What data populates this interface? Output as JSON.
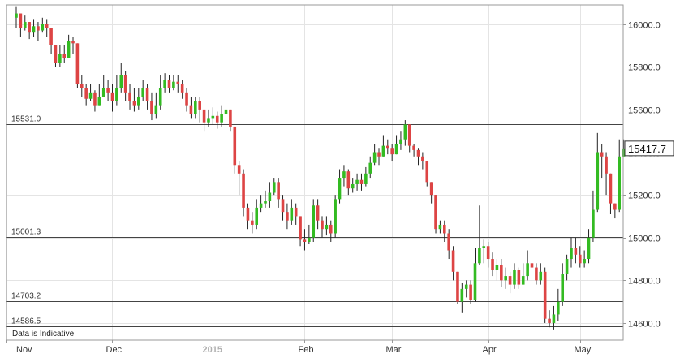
{
  "chart_data": {
    "type": "candlestick",
    "ylim": [
      14520,
      16090
    ],
    "x_count": 140,
    "yticks": [
      "16000.0",
      "15800.0",
      "15600.0",
      "15400.0",
      "15200.0",
      "15000.0",
      "14800.0",
      "14600.0"
    ],
    "ytick_values": [
      16000,
      15800,
      15600,
      15400,
      15200,
      15000,
      14800,
      14600
    ],
    "xticks": [
      {
        "label": "Nov",
        "index": 0,
        "bold": false
      },
      {
        "label": "Dec",
        "index": 22,
        "bold": false
      },
      {
        "label": "2015",
        "index": 44,
        "bold": true
      },
      {
        "label": "Feb",
        "index": 66,
        "bold": false
      },
      {
        "label": "Mar",
        "index": 86,
        "bold": false
      },
      {
        "label": "Apr",
        "index": 108,
        "bold": false
      },
      {
        "label": "May",
        "index": 129,
        "bold": false
      }
    ],
    "levels": [
      {
        "label": "15531.0",
        "value": 15531.0
      },
      {
        "label": "15001.3",
        "value": 15001.3
      },
      {
        "label": "14703.2",
        "value": 14703.2
      },
      {
        "label": "14586.5",
        "value": 14586.5
      }
    ],
    "last_price": {
      "label": "15417.7",
      "value": 15417.7
    },
    "note": "Data is Indicative",
    "grid": true,
    "colors": {
      "up": "#33bb22",
      "down": "#dd4444",
      "wick": "#222222",
      "grid": "#e4e4e4",
      "border": "#999999",
      "level": "#444444"
    },
    "closes": [
      16050,
      15980,
      16010,
      15960,
      15990,
      15970,
      16000,
      15980,
      15900,
      15820,
      15860,
      15840,
      15920,
      15910,
      15720,
      15700,
      15650,
      15680,
      15620,
      15660,
      15700,
      15680,
      15640,
      15700,
      15760,
      15680,
      15640,
      15620,
      15660,
      15700,
      15640,
      15580,
      15620,
      15700,
      15740,
      15700,
      15730,
      15720,
      15680,
      15620,
      15580,
      15640,
      15600,
      15540,
      15560,
      15570,
      15540,
      15580,
      15600,
      15520,
      15340,
      15300,
      15140,
      15080,
      15060,
      15140,
      15160,
      15170,
      15210,
      15260,
      15180,
      15120,
      15080,
      15140,
      15100,
      14990,
      14980,
      15000,
      15150,
      15080,
      15040,
      15060,
      15020,
      15180,
      15280,
      15310,
      15230,
      15250,
      15270,
      15250,
      15300,
      15350,
      15400,
      15380,
      15430,
      15420,
      15390,
      15440,
      15460,
      15530,
      15430,
      15410,
      15380,
      15360,
      15260,
      15200,
      15040,
      15060,
      15020,
      14940,
      14840,
      14700,
      14760,
      14780,
      14710,
      14880,
      14950,
      14960,
      14900,
      14850,
      14870,
      14800,
      14820,
      14780,
      14850,
      14780,
      14820,
      14880,
      14860,
      14800,
      14840,
      14620,
      14600,
      14640,
      14700,
      14830,
      14900,
      14950,
      14920,
      14880,
      14900,
      15000,
      15130,
      15400,
      15380,
      15300,
      15160,
      15130,
      15380,
      15417.7
    ],
    "highs": [
      16080,
      16030,
      16040,
      16010,
      16020,
      16010,
      16030,
      16020,
      15980,
      15880,
      15900,
      15900,
      15950,
      15940,
      15860,
      15760,
      15720,
      15720,
      15690,
      15720,
      15760,
      15740,
      15720,
      15760,
      15820,
      15780,
      15720,
      15700,
      15700,
      15740,
      15720,
      15680,
      15680,
      15760,
      15770,
      15760,
      15760,
      15760,
      15740,
      15700,
      15660,
      15660,
      15660,
      15600,
      15600,
      15610,
      15590,
      15620,
      15630,
      15600,
      15520,
      15360,
      15320,
      15160,
      15120,
      15180,
      15200,
      15220,
      15260,
      15280,
      15280,
      15200,
      15160,
      15180,
      15160,
      15100,
      15040,
      15060,
      15180,
      15180,
      15100,
      15100,
      15080,
      15200,
      15320,
      15340,
      15320,
      15280,
      15300,
      15300,
      15330,
      15380,
      15440,
      15420,
      15480,
      15460,
      15440,
      15480,
      15500,
      15550,
      15500,
      15440,
      15420,
      15400,
      15360,
      15260,
      15200,
      15080,
      15080,
      15040,
      14960,
      14840,
      14790,
      14800,
      14800,
      14950,
      15150,
      14990,
      14980,
      14930,
      14900,
      14900,
      14860,
      14840,
      14880,
      14860,
      14880,
      14940,
      14900,
      14880,
      14880,
      14860,
      14660,
      14680,
      14760,
      14880,
      14920,
      15000,
      15000,
      14960,
      14940,
      15040,
      15220,
      15490,
      15440,
      15400,
      15300,
      15160,
      15460,
      15460
    ],
    "lows": [
      15980,
      15940,
      15970,
      15930,
      15940,
      15920,
      15960,
      15940,
      15860,
      15800,
      15800,
      15820,
      15840,
      15860,
      15700,
      15660,
      15620,
      15640,
      15590,
      15620,
      15660,
      15640,
      15590,
      15620,
      15680,
      15640,
      15600,
      15590,
      15600,
      15640,
      15600,
      15550,
      15560,
      15600,
      15680,
      15680,
      15690,
      15680,
      15650,
      15590,
      15560,
      15560,
      15540,
      15500,
      15520,
      15530,
      15510,
      15520,
      15560,
      15500,
      15300,
      15200,
      15100,
      15040,
      15020,
      15040,
      15120,
      15140,
      15140,
      15200,
      15140,
      15080,
      15040,
      15060,
      15060,
      14960,
      14940,
      14970,
      14980,
      15040,
      15000,
      15010,
      14980,
      15000,
      15160,
      15240,
      15200,
      15210,
      15220,
      15220,
      15240,
      15280,
      15340,
      15340,
      15380,
      15390,
      15360,
      15390,
      15410,
      15430,
      15400,
      15380,
      15340,
      15320,
      15240,
      15160,
      15020,
      15020,
      14980,
      14900,
      14800,
      14690,
      14650,
      14720,
      14690,
      14700,
      14870,
      14880,
      14860,
      14820,
      14800,
      14770,
      14760,
      14740,
      14760,
      14760,
      14780,
      14800,
      14800,
      14780,
      14780,
      14600,
      14580,
      14570,
      14610,
      14680,
      14800,
      14860,
      14880,
      14860,
      14860,
      14880,
      14980,
      15120,
      15280,
      15200,
      15110,
      15090,
      15120,
      15380
    ]
  }
}
